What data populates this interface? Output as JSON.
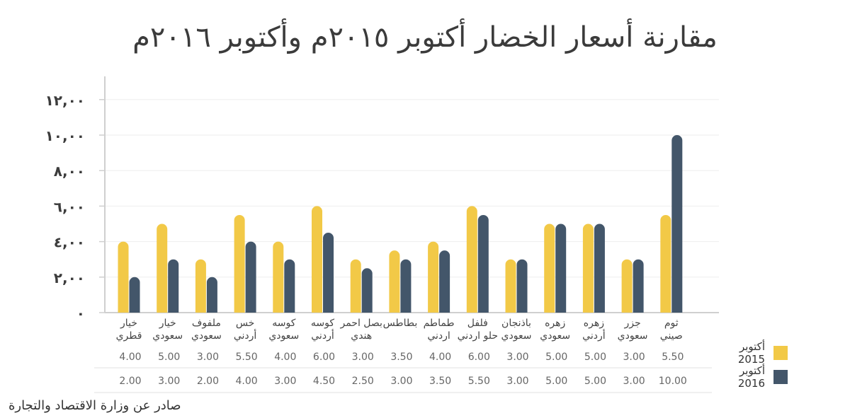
{
  "colors": {
    "series_2015": "#f2c947",
    "series_2016": "#43566a",
    "axis": "#cfcfcf",
    "grid": "#eeeeee"
  },
  "source": "صادر عن وزارة الاقتصاد والتجارة",
  "chart_data": {
    "type": "bar",
    "title": "مقارنة أسعار الخضار أكتوبر ٢٠١٥م وأكتوبر ٢٠١٦م",
    "xlabel": "",
    "ylabel": "",
    "ylim": [
      0,
      12
    ],
    "yticks": [
      0,
      2,
      4,
      6,
      8,
      10,
      12
    ],
    "ytick_labels": [
      "٠",
      "٢,٠٠",
      "٤,٠٠",
      "٦,٠٠",
      "٨,٠٠",
      "١٠,٠٠",
      "١٢,٠٠"
    ],
    "grid": true,
    "legend": "bottom-right",
    "categories": [
      [
        "خيار",
        "قطري"
      ],
      [
        "خيار",
        "سعودي"
      ],
      [
        "ملفوف",
        "سعودي"
      ],
      [
        "خس",
        "أردني"
      ],
      [
        "كوسه",
        "سعودي"
      ],
      [
        "كوسه",
        "أردني"
      ],
      [
        "بصل احمر",
        "هندي"
      ],
      [
        "بطاطس"
      ],
      [
        "طماطم",
        "اردني"
      ],
      [
        "فلفل",
        "حلو اردني"
      ],
      [
        "باذنجان",
        "سعودي"
      ],
      [
        "زهره",
        "سعودي"
      ],
      [
        "زهره",
        "أردني"
      ],
      [
        "جزر",
        "سعودي"
      ],
      [
        "ثوم",
        "صيني"
      ]
    ],
    "series": [
      {
        "name": "أكتوبر 2015",
        "values": [
          4,
          5,
          3,
          5.5,
          4,
          6,
          3,
          3.5,
          4,
          6,
          3,
          5,
          5,
          3,
          5.5
        ],
        "value_labels": [
          "4.00",
          "5.00",
          "3.00",
          "5.50",
          "4.00",
          "6.00",
          "3.00",
          "3.50",
          "4.00",
          "6.00",
          "3.00",
          "5.00",
          "5.00",
          "3.00",
          "5.50"
        ]
      },
      {
        "name": "أكتوبر 2016",
        "values": [
          2,
          3,
          2,
          4,
          3,
          4.5,
          2.5,
          3,
          3.5,
          5.5,
          3,
          5,
          5,
          3,
          10
        ],
        "value_labels": [
          "2.00",
          "3.00",
          "2.00",
          "4.00",
          "3.00",
          "4.50",
          "2.50",
          "3.00",
          "3.50",
          "5.50",
          "3.00",
          "5.00",
          "5.00",
          "3.00",
          "10.00"
        ]
      }
    ]
  }
}
